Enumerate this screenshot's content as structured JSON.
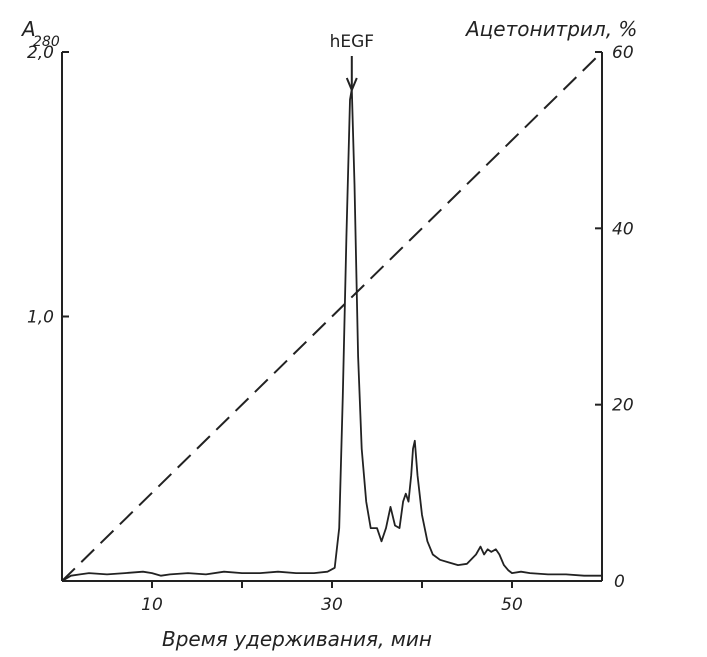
{
  "chart_data": {
    "type": "line",
    "title": "",
    "xlabel": "Время удерживания, мин",
    "ylabel_left": "A",
    "ylabel_left_subscript": "280",
    "ylabel_right": "Ацетонитрил, %",
    "xlim": [
      0,
      60
    ],
    "ylim_left": [
      0,
      2.0
    ],
    "ylim_right": [
      0,
      60
    ],
    "x_ticks": [
      10,
      20,
      30,
      40,
      50
    ],
    "x_tick_labels": [
      "10",
      "",
      "30",
      "",
      "50"
    ],
    "y_left_tick_labels": [
      {
        "value": 1.0,
        "label": "1,0"
      },
      {
        "value": 2.0,
        "label": "2,0"
      }
    ],
    "y_right_tick_labels": [
      {
        "value": 20,
        "label": "20"
      },
      {
        "value": 40,
        "label": "40"
      },
      {
        "value": 60,
        "label": "60"
      }
    ],
    "right_zero_label": "0",
    "grid": false,
    "annotation": {
      "text": "hEGF",
      "x": 32.2
    },
    "series": [
      {
        "style": "solid",
        "axis": "left",
        "x": [
          0,
          1,
          2,
          3,
          5,
          7,
          9,
          10,
          11,
          12,
          14,
          16,
          18,
          20,
          22,
          24,
          26,
          28,
          29.5,
          30.3,
          30.8,
          31.2,
          31.6,
          32.0,
          32.2,
          32.5,
          32.9,
          33.3,
          33.8,
          34.3,
          35.0,
          35.5,
          36.0,
          36.5,
          37.0,
          37.5,
          37.9,
          38.2,
          38.5,
          38.8,
          39.0,
          39.2,
          39.5,
          40.0,
          40.6,
          41.2,
          42.0,
          43.0,
          44.0,
          45.0,
          46.0,
          46.5,
          46.9,
          47.3,
          47.7,
          48.2,
          48.6,
          49.1,
          49.6,
          50.0,
          51.0,
          52.0,
          54.0,
          56.0,
          58.0,
          60.0
        ],
        "y": [
          0.0,
          0.02,
          0.025,
          0.03,
          0.025,
          0.03,
          0.035,
          0.03,
          0.02,
          0.025,
          0.03,
          0.025,
          0.035,
          0.03,
          0.03,
          0.035,
          0.03,
          0.03,
          0.035,
          0.05,
          0.2,
          0.7,
          1.3,
          1.82,
          1.86,
          1.5,
          0.85,
          0.5,
          0.3,
          0.2,
          0.2,
          0.15,
          0.2,
          0.28,
          0.21,
          0.2,
          0.3,
          0.33,
          0.3,
          0.4,
          0.5,
          0.53,
          0.4,
          0.25,
          0.15,
          0.1,
          0.08,
          0.07,
          0.06,
          0.065,
          0.1,
          0.13,
          0.1,
          0.12,
          0.11,
          0.12,
          0.1,
          0.06,
          0.04,
          0.03,
          0.035,
          0.03,
          0.025,
          0.025,
          0.02,
          0.02
        ]
      },
      {
        "style": "dashed",
        "axis": "right",
        "x": [
          0,
          60
        ],
        "y": [
          0,
          60
        ]
      }
    ]
  }
}
